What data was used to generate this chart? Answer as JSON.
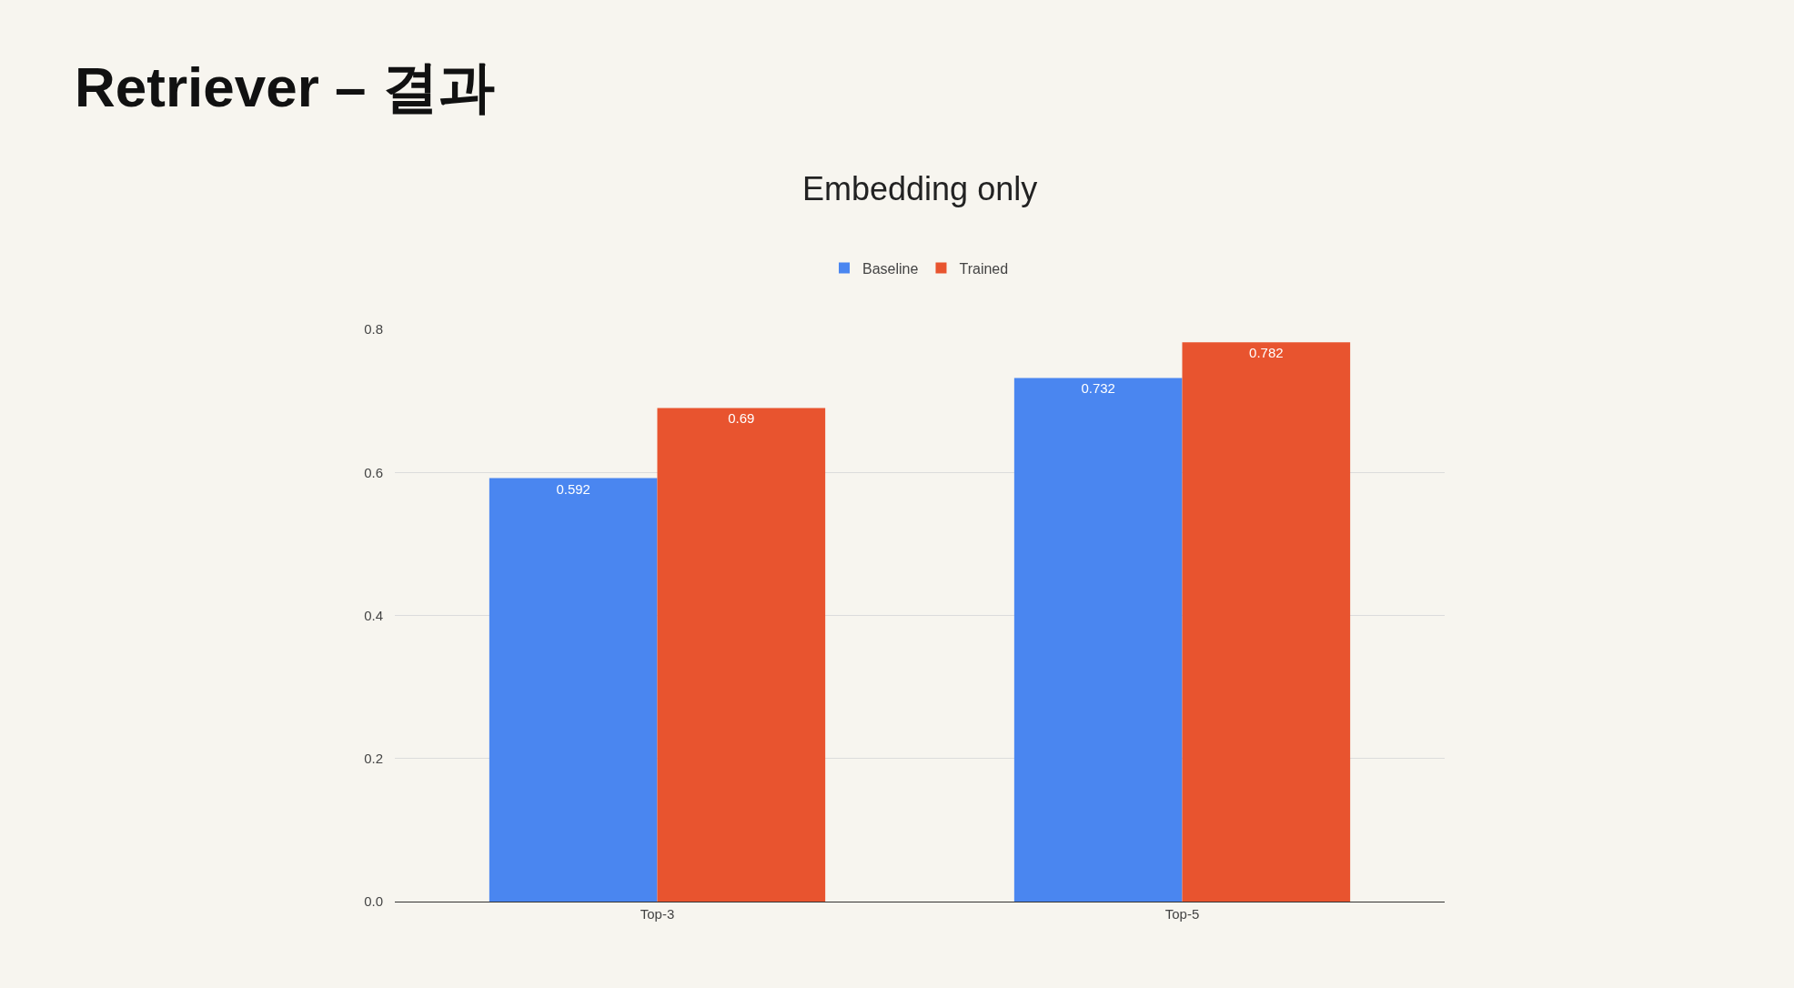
{
  "chart_data": {
    "type": "bar",
    "title": "Retriever – 결과",
    "subtitle": "Embedding only",
    "categories": [
      "Top-3",
      "Top-5"
    ],
    "series": [
      {
        "name": "Baseline",
        "color": "#4a86f0",
        "values": [
          0.592,
          0.732
        ]
      },
      {
        "name": "Trained",
        "color": "#e8542f",
        "values": [
          0.69,
          0.782
        ]
      }
    ],
    "ylim": [
      0,
      0.8
    ],
    "yticks": [
      {
        "value": 0,
        "label": "0.0"
      },
      0.2,
      0.4,
      0.6,
      0.8
    ],
    "grid": "y",
    "legend": "top",
    "data_labels": true
  }
}
